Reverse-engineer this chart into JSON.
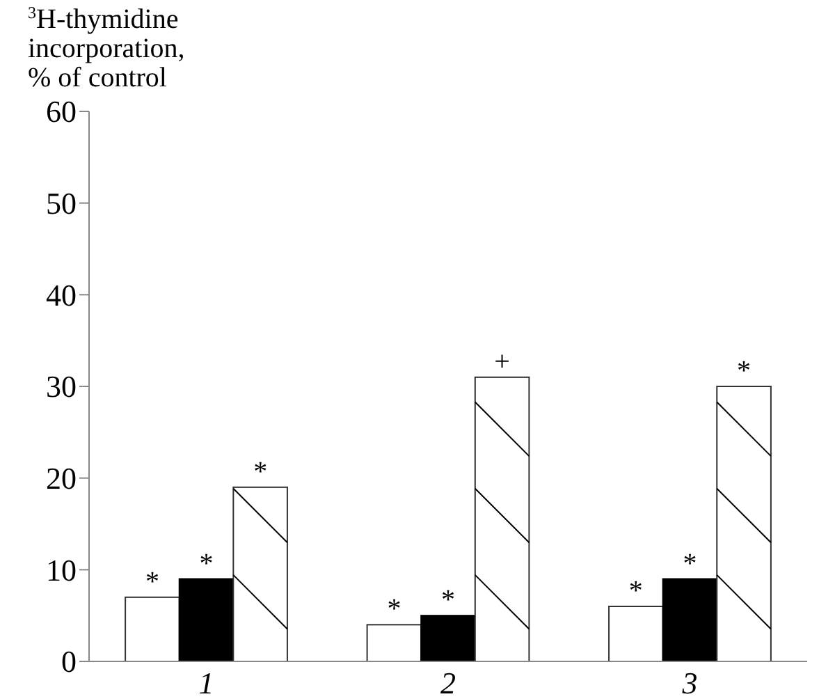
{
  "chart_data": {
    "type": "bar",
    "ylabel": "$^{3}$H-thymidine incorporation, % of control",
    "categories": [
      "1",
      "2",
      "3"
    ],
    "series": [
      {
        "color": "#ffffff",
        "values": [
          7,
          4,
          6
        ],
        "value_labels": [
          "*",
          "*",
          "*"
        ]
      },
      {
        "color": "#000000",
        "values": [
          9,
          5,
          9
        ],
        "value_labels": [
          "*",
          "*",
          "*"
        ]
      },
      {
        "color": "#ffffff",
        "values": [
          19,
          31,
          30
        ],
        "value_labels": [
          "*",
          "+",
          "*"
        ]
      }
    ],
    "ylim": [
      0,
      60
    ],
    "yticks": [
      0,
      10,
      20,
      30,
      40,
      50,
      60
    ],
    "grid": false
  }
}
